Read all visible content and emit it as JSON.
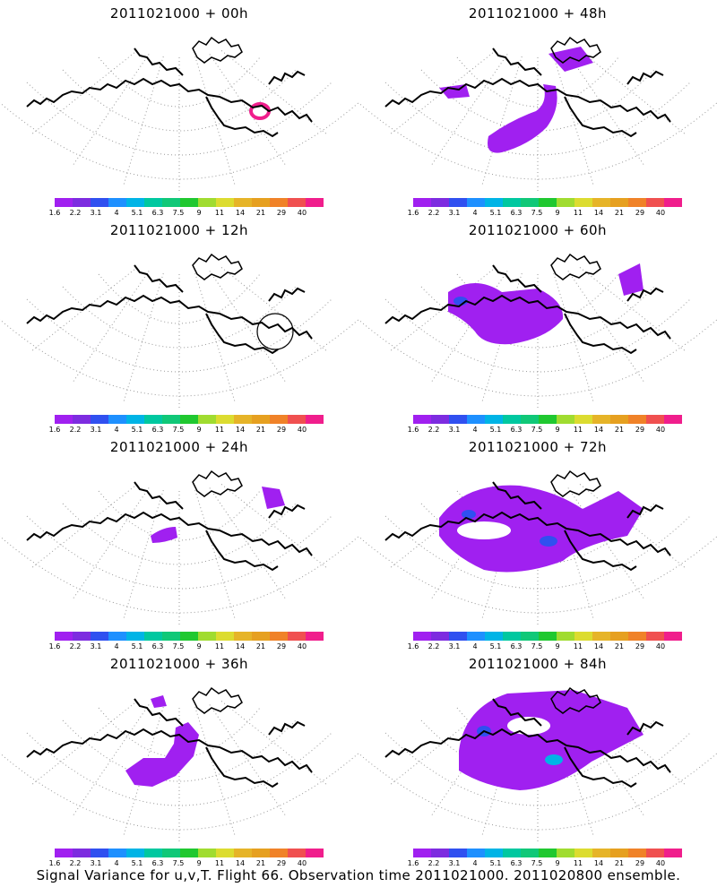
{
  "panels": [
    {
      "title": "2011021000 + 00h",
      "features": [
        "ring"
      ]
    },
    {
      "title": "2011021000 + 48h",
      "features": [
        "plume48"
      ]
    },
    {
      "title": "2011021000 + 12h",
      "features": [
        "circle12"
      ]
    },
    {
      "title": "2011021000 + 60h",
      "features": [
        "plume60"
      ]
    },
    {
      "title": "2011021000 + 24h",
      "features": [
        "plume24"
      ]
    },
    {
      "title": "2011021000 + 72h",
      "features": [
        "plume72"
      ]
    },
    {
      "title": "2011021000 + 36h",
      "features": [
        "plume36"
      ]
    },
    {
      "title": "2011021000 + 84h",
      "features": [
        "plume84"
      ]
    }
  ],
  "colorbar": {
    "colors": [
      "#a020f0",
      "#7d2ce0",
      "#3050f0",
      "#1e90ff",
      "#00b4e6",
      "#00c8a0",
      "#10c878",
      "#20c830",
      "#a0dc30",
      "#dcdc30",
      "#e6b428",
      "#e6a020",
      "#f08228",
      "#f05050",
      "#f01e8c"
    ],
    "labels": [
      "1.6",
      "2.2",
      "3.1",
      "4",
      "5.1",
      "6.3",
      "7.5",
      "9",
      "11",
      "14",
      "21",
      "29",
      "40"
    ]
  },
  "caption": "Signal Variance for u,v,T. Flight 66. Observation time 2011021000. 2011020800 ensemble."
}
